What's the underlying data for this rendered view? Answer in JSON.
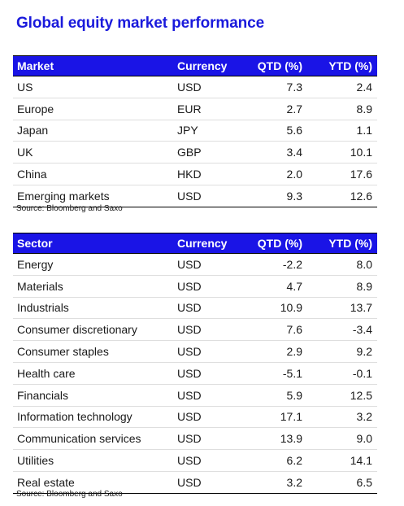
{
  "title": "Global equity market performance",
  "market_table": {
    "headers": [
      "Market",
      "Currency",
      "QTD (%)",
      "YTD (%)"
    ],
    "rows": [
      [
        "US",
        "USD",
        "7.3",
        "2.4"
      ],
      [
        "Europe",
        "EUR",
        "2.7",
        "8.9"
      ],
      [
        "Japan",
        "JPY",
        "5.6",
        "1.1"
      ],
      [
        "UK",
        "GBP",
        "3.4",
        "10.1"
      ],
      [
        "China",
        "HKD",
        "2.0",
        "17.6"
      ],
      [
        "Emerging markets",
        "USD",
        "9.3",
        "12.6"
      ]
    ],
    "source": "Source: Bloomberg and Saxo"
  },
  "sector_table": {
    "headers": [
      "Sector",
      "Currency",
      "QTD (%)",
      "YTD (%)"
    ],
    "rows": [
      [
        "Energy",
        "USD",
        "-2.2",
        "8.0"
      ],
      [
        "Materials",
        "USD",
        "4.7",
        "8.9"
      ],
      [
        "Industrials",
        "USD",
        "10.9",
        "13.7"
      ],
      [
        "Consumer discretionary",
        "USD",
        "7.6",
        "-3.4"
      ],
      [
        "Consumer staples",
        "USD",
        "2.9",
        "9.2"
      ],
      [
        "Health care",
        "USD",
        "-5.1",
        "-0.1"
      ],
      [
        "Financials",
        "USD",
        "5.9",
        "12.5"
      ],
      [
        "Information technology",
        "USD",
        "17.1",
        "3.2"
      ],
      [
        "Communication services",
        "USD",
        "13.9",
        "9.0"
      ],
      [
        "Utilities",
        "USD",
        "6.2",
        "14.1"
      ],
      [
        "Real estate",
        "USD",
        "3.2",
        "6.5"
      ]
    ],
    "source": "Source: Bloomberg and Saxo"
  },
  "colors": {
    "title": "#1a1adc",
    "header_bg": "#1a14e6",
    "header_text": "#ffffff"
  }
}
